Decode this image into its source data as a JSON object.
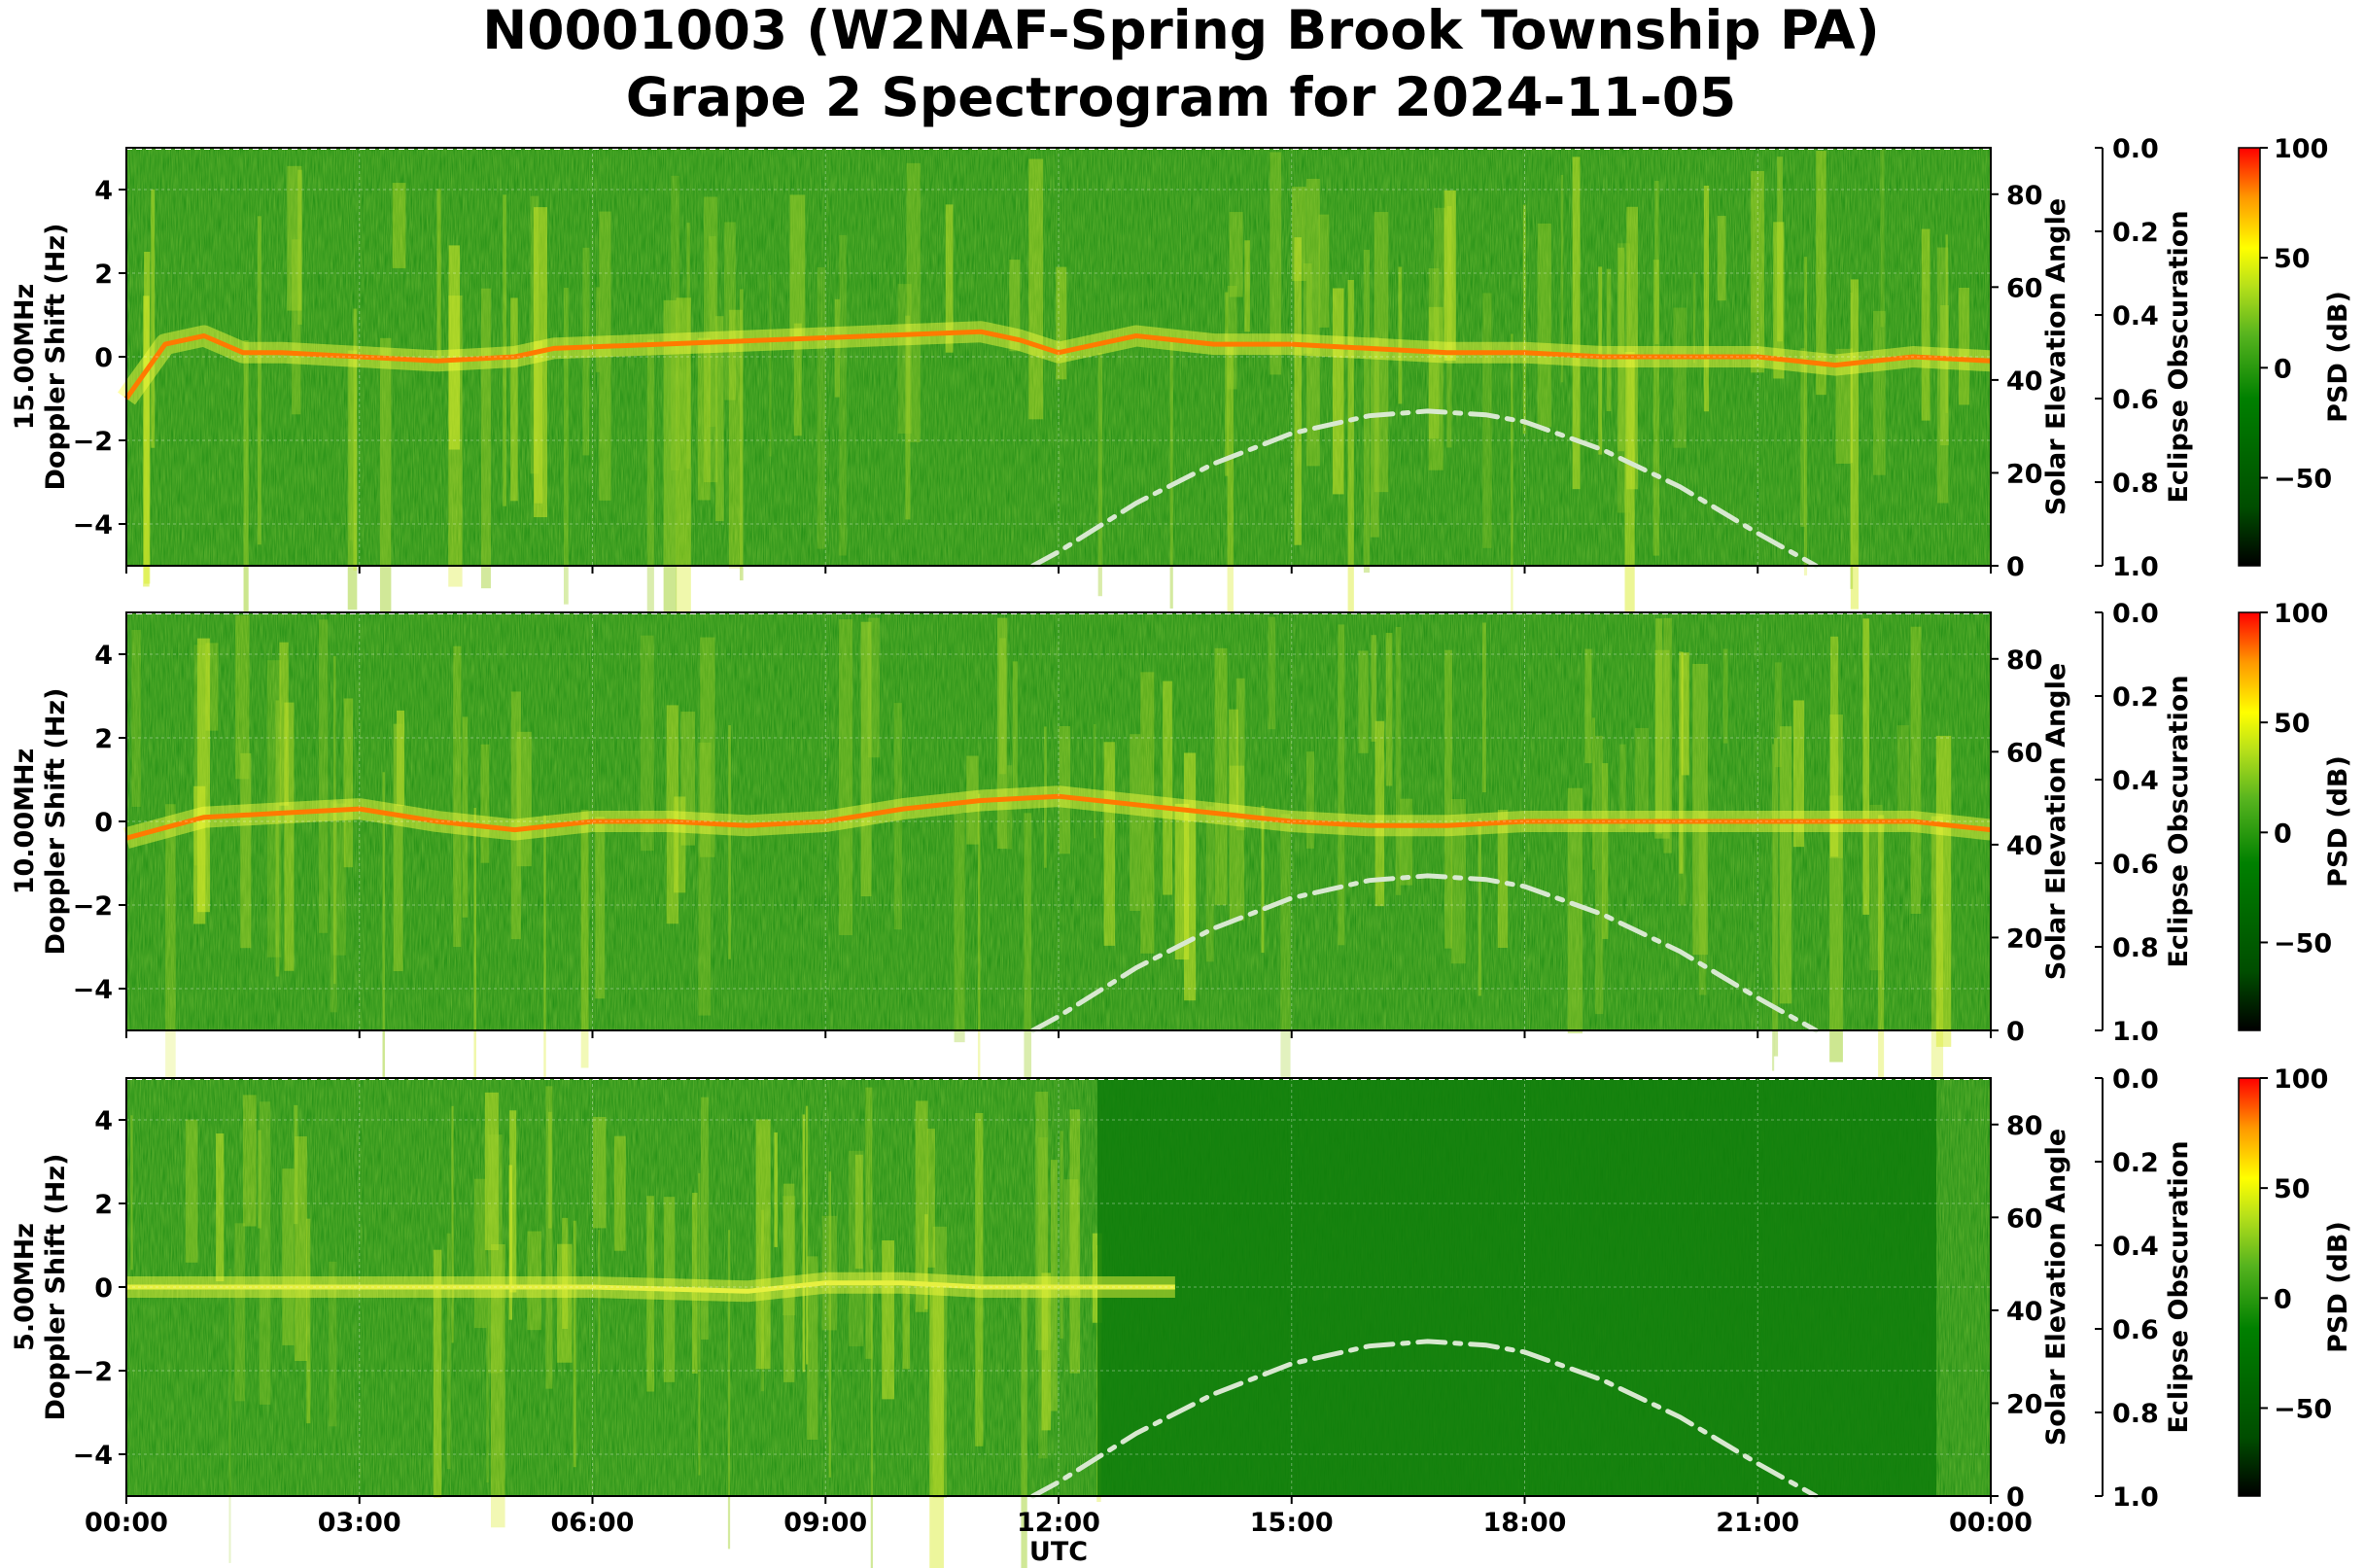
{
  "title_line1": "N0001003 (W2NAF-Spring Brook Township PA)",
  "title_line2": "Grape 2 Spectrogram for 2024-11-05",
  "colors": {
    "psd_colormap": [
      "#000000",
      "#004d00",
      "#008000",
      "#55b31e",
      "#b7e01a",
      "#ffff00",
      "#ff9900",
      "#ff0000"
    ],
    "elevation_curve": "#d8e8d0"
  },
  "chart_data": [
    {
      "type": "heatmap",
      "panel": "15.00MHz",
      "ylabel": "15.00MHz\nDoppler Shift (Hz)",
      "xlabel": "",
      "ylim": [
        -5,
        5
      ],
      "yticks": [
        -4,
        -2,
        0,
        2,
        4
      ],
      "xlim": [
        0,
        24
      ],
      "xticks": [
        "00:00",
        "03:00",
        "06:00",
        "09:00",
        "12:00",
        "15:00",
        "18:00",
        "21:00",
        "00:00"
      ],
      "grid": true,
      "right_axis_label": "Solar Elevation Angle",
      "right_axis_ticks": [
        0,
        20,
        40,
        60,
        80
      ],
      "right_axis_range": [
        0,
        90
      ],
      "eclipse_axis_label": "Eclipse Obscuration",
      "eclipse_axis_ticks": [
        "0.0",
        "0.2",
        "0.4",
        "0.6",
        "0.8",
        "1.0"
      ],
      "colorbar_label": "PSD (dB)",
      "colorbar_ticks": [
        100,
        50,
        0,
        -50
      ],
      "colorbar_range": [
        -90,
        100
      ],
      "doppler_trace": {
        "utc_hours": [
          0,
          0.5,
          1,
          1.5,
          2,
          3,
          4,
          5,
          5.5,
          11,
          11.5,
          12,
          13,
          14,
          15,
          16,
          17,
          18,
          19,
          20,
          21,
          22,
          23,
          24
        ],
        "shift_hz": [
          -1.0,
          0.3,
          0.5,
          0.1,
          0.1,
          0.0,
          -0.1,
          0.0,
          0.2,
          0.6,
          0.4,
          0.1,
          0.5,
          0.3,
          0.3,
          0.2,
          0.1,
          0.1,
          0.0,
          0.0,
          0.0,
          -0.2,
          0.0,
          -0.1
        ]
      },
      "solar_elevation": {
        "utc_hours": [
          11.67,
          12,
          13,
          14,
          15,
          16,
          16.75,
          17.5,
          18,
          19,
          20,
          21,
          21.75
        ],
        "elevation_deg": [
          0,
          3,
          13.5,
          22,
          28.5,
          32.3,
          33.3,
          32.5,
          31,
          25,
          17,
          7,
          0
        ]
      }
    },
    {
      "type": "heatmap",
      "panel": "10.00MHz",
      "ylabel": "10.00MHz\nDoppler Shift (Hz)",
      "xlabel": "",
      "ylim": [
        -5,
        5
      ],
      "yticks": [
        -4,
        -2,
        0,
        2,
        4
      ],
      "xlim": [
        0,
        24
      ],
      "xticks": [
        "00:00",
        "03:00",
        "06:00",
        "09:00",
        "12:00",
        "15:00",
        "18:00",
        "21:00",
        "00:00"
      ],
      "grid": true,
      "right_axis_label": "Solar Elevation Angle",
      "right_axis_ticks": [
        0,
        20,
        40,
        60,
        80
      ],
      "right_axis_range": [
        0,
        90
      ],
      "eclipse_axis_label": "Eclipse Obscuration",
      "eclipse_axis_ticks": [
        "0.0",
        "0.2",
        "0.4",
        "0.6",
        "0.8",
        "1.0"
      ],
      "colorbar_label": "PSD (dB)",
      "colorbar_ticks": [
        100,
        50,
        0,
        -50
      ],
      "colorbar_range": [
        -90,
        100
      ],
      "doppler_trace": {
        "utc_hours": [
          0,
          1,
          2,
          3,
          4,
          5,
          6,
          7,
          8,
          9,
          10,
          11,
          12,
          13,
          14,
          15,
          16,
          17,
          18,
          19,
          20,
          21,
          22,
          23,
          24
        ],
        "shift_hz": [
          -0.4,
          0.1,
          0.2,
          0.3,
          0.0,
          -0.2,
          0.0,
          0.0,
          -0.1,
          0.0,
          0.3,
          0.5,
          0.6,
          0.4,
          0.2,
          0.0,
          -0.1,
          -0.1,
          0.0,
          0.0,
          0.0,
          0.0,
          0.0,
          0.0,
          -0.2
        ]
      },
      "solar_elevation": {
        "utc_hours": [
          11.67,
          12,
          13,
          14,
          15,
          16,
          16.75,
          17.5,
          18,
          19,
          20,
          21,
          21.75
        ],
        "elevation_deg": [
          0,
          3,
          13.5,
          22,
          28.5,
          32.3,
          33.3,
          32.5,
          31,
          25,
          17,
          7,
          0
        ]
      }
    },
    {
      "type": "heatmap",
      "panel": "5.00MHz",
      "ylabel": "5.00MHz\nDoppler Shift (Hz)",
      "xlabel": "UTC",
      "ylim": [
        -5,
        5
      ],
      "yticks": [
        -4,
        -2,
        0,
        2,
        4
      ],
      "xlim": [
        0,
        24
      ],
      "xticks": [
        "00:00",
        "03:00",
        "06:00",
        "09:00",
        "12:00",
        "15:00",
        "18:00",
        "21:00",
        "00:00"
      ],
      "grid": true,
      "right_axis_label": "Solar Elevation Angle",
      "right_axis_ticks": [
        0,
        20,
        40,
        60,
        80
      ],
      "right_axis_range": [
        0,
        90
      ],
      "eclipse_axis_label": "Eclipse Obscuration",
      "eclipse_axis_ticks": [
        "0.0",
        "0.2",
        "0.4",
        "0.6",
        "0.8",
        "1.0"
      ],
      "colorbar_label": "PSD (dB)",
      "colorbar_ticks": [
        100,
        50,
        0,
        -50
      ],
      "colorbar_range": [
        -90,
        100
      ],
      "doppler_trace": {
        "utc_hours": [
          0,
          2,
          4,
          6,
          8,
          9,
          10,
          11,
          12,
          13.5
        ],
        "shift_hz": [
          0.0,
          0.0,
          0.0,
          0.0,
          -0.1,
          0.1,
          0.1,
          0.0,
          0.0,
          0.0
        ]
      },
      "solar_elevation": {
        "utc_hours": [
          11.67,
          12,
          13,
          14,
          15,
          16,
          16.75,
          17.5,
          18,
          19,
          20,
          21,
          21.75
        ],
        "elevation_deg": [
          0,
          3,
          13.5,
          22,
          28.5,
          32.3,
          33.3,
          32.5,
          31,
          25,
          17,
          7,
          0
        ]
      }
    }
  ]
}
